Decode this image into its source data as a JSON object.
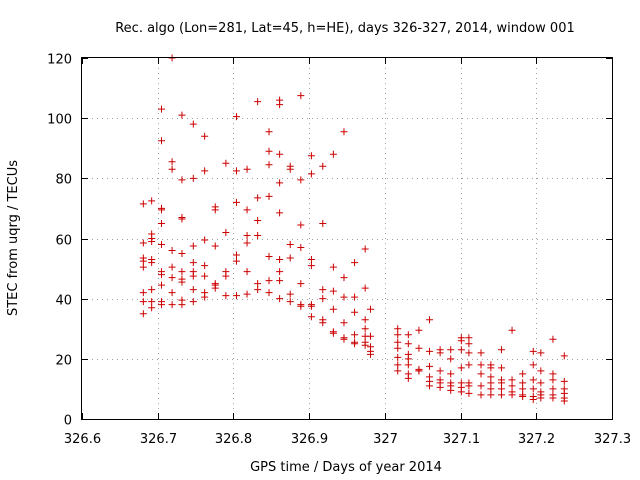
{
  "chart_data": {
    "type": "scatter",
    "title": "Rec. algo (Lon=281, Lat=45, h=HE), days 326-327, 2014, window 001",
    "xlabel": "GPS time / Days of year 2014",
    "ylabel": "STEC from uqrg / TECUs",
    "xlim": [
      326.6,
      327.3
    ],
    "ylim": [
      0,
      120
    ],
    "xticks": [
      326.6,
      326.7,
      326.8,
      326.9,
      327.0,
      327.1,
      327.2,
      327.3
    ],
    "xtick_labels": [
      "326.6",
      "326.7",
      "326.8",
      "326.9",
      "327",
      "327.1",
      "327.2",
      "327.3"
    ],
    "yticks": [
      0,
      20,
      40,
      60,
      80,
      100,
      120
    ],
    "ytick_labels": [
      "0",
      "20",
      "40",
      "60",
      "80",
      "100",
      "120"
    ],
    "grid": true,
    "marker": "+",
    "color": "#cc0000",
    "series": [
      {
        "name": "STEC",
        "points": [
          [
            326.681,
            71.5
          ],
          [
            326.681,
            58.5
          ],
          [
            326.681,
            53.5
          ],
          [
            326.681,
            52.5
          ],
          [
            326.681,
            50.5
          ],
          [
            326.681,
            42
          ],
          [
            326.681,
            39
          ],
          [
            326.681,
            35
          ],
          [
            326.692,
            72.5
          ],
          [
            326.692,
            61.5
          ],
          [
            326.692,
            60
          ],
          [
            326.692,
            59
          ],
          [
            326.692,
            53
          ],
          [
            326.692,
            52
          ],
          [
            326.692,
            43
          ],
          [
            326.692,
            39
          ],
          [
            326.692,
            37
          ],
          [
            326.705,
            103
          ],
          [
            326.705,
            92.5
          ],
          [
            326.705,
            70
          ],
          [
            326.705,
            69.5
          ],
          [
            326.705,
            65
          ],
          [
            326.705,
            58
          ],
          [
            326.705,
            49
          ],
          [
            326.705,
            48
          ],
          [
            326.705,
            44.5
          ],
          [
            326.705,
            39
          ],
          [
            326.705,
            38
          ],
          [
            326.719,
            120
          ],
          [
            326.719,
            85.5
          ],
          [
            326.719,
            83
          ],
          [
            326.719,
            56
          ],
          [
            326.719,
            50.5
          ],
          [
            326.719,
            47
          ],
          [
            326.719,
            42
          ],
          [
            326.719,
            38
          ],
          [
            326.732,
            101
          ],
          [
            326.732,
            79.5
          ],
          [
            326.732,
            67
          ],
          [
            326.732,
            66.5
          ],
          [
            326.732,
            55
          ],
          [
            326.732,
            49
          ],
          [
            326.732,
            46.5
          ],
          [
            326.732,
            45.5
          ],
          [
            326.732,
            39.5
          ],
          [
            326.732,
            38
          ],
          [
            326.747,
            98
          ],
          [
            326.747,
            80
          ],
          [
            326.747,
            57.5
          ],
          [
            326.747,
            52
          ],
          [
            326.747,
            49
          ],
          [
            326.747,
            47.5
          ],
          [
            326.747,
            43
          ],
          [
            326.747,
            39
          ],
          [
            326.762,
            94
          ],
          [
            326.762,
            82.5
          ],
          [
            326.762,
            59.5
          ],
          [
            326.762,
            51
          ],
          [
            326.762,
            47.5
          ],
          [
            326.762,
            42
          ],
          [
            326.762,
            40.5
          ],
          [
            326.776,
            70.5
          ],
          [
            326.776,
            69.5
          ],
          [
            326.776,
            57.5
          ],
          [
            326.776,
            45
          ],
          [
            326.776,
            44.5
          ],
          [
            326.776,
            43.5
          ],
          [
            326.79,
            85
          ],
          [
            326.79,
            62
          ],
          [
            326.79,
            49
          ],
          [
            326.79,
            47.5
          ],
          [
            326.79,
            41
          ],
          [
            326.804,
            100.5
          ],
          [
            326.804,
            82.5
          ],
          [
            326.804,
            72
          ],
          [
            326.804,
            54.5
          ],
          [
            326.804,
            52.5
          ],
          [
            326.804,
            41
          ],
          [
            326.818,
            83
          ],
          [
            326.818,
            69.5
          ],
          [
            326.818,
            61
          ],
          [
            326.818,
            58.5
          ],
          [
            326.818,
            49
          ],
          [
            326.818,
            41.5
          ],
          [
            326.832,
            105.5
          ],
          [
            326.832,
            73.5
          ],
          [
            326.832,
            66
          ],
          [
            326.832,
            61
          ],
          [
            326.832,
            45
          ],
          [
            326.832,
            43
          ],
          [
            326.847,
            95.5
          ],
          [
            326.847,
            89
          ],
          [
            326.847,
            84.5
          ],
          [
            326.847,
            74
          ],
          [
            326.847,
            54
          ],
          [
            326.847,
            46
          ],
          [
            326.847,
            42
          ],
          [
            326.861,
            106
          ],
          [
            326.861,
            104.5
          ],
          [
            326.861,
            88
          ],
          [
            326.861,
            78.5
          ],
          [
            326.861,
            68.5
          ],
          [
            326.861,
            53
          ],
          [
            326.861,
            49
          ],
          [
            326.861,
            46
          ],
          [
            326.861,
            40
          ],
          [
            326.875,
            84
          ],
          [
            326.875,
            83
          ],
          [
            326.875,
            58
          ],
          [
            326.875,
            53.5
          ],
          [
            326.875,
            41.5
          ],
          [
            326.875,
            39
          ],
          [
            326.889,
            107.5
          ],
          [
            326.889,
            79.5
          ],
          [
            326.889,
            64.5
          ],
          [
            326.889,
            57
          ],
          [
            326.889,
            45
          ],
          [
            326.889,
            38
          ],
          [
            326.889,
            37.5
          ],
          [
            326.903,
            87.5
          ],
          [
            326.903,
            81.5
          ],
          [
            326.903,
            53
          ],
          [
            326.903,
            51
          ],
          [
            326.903,
            38
          ],
          [
            326.903,
            37.5
          ],
          [
            326.903,
            34
          ],
          [
            326.918,
            84
          ],
          [
            326.918,
            65
          ],
          [
            326.918,
            43
          ],
          [
            326.918,
            40
          ],
          [
            326.918,
            33
          ],
          [
            326.918,
            32
          ],
          [
            326.932,
            88
          ],
          [
            326.932,
            50.5
          ],
          [
            326.932,
            42.5
          ],
          [
            326.932,
            36.5
          ],
          [
            326.932,
            29
          ],
          [
            326.932,
            28.5
          ],
          [
            326.946,
            95.5
          ],
          [
            326.946,
            47
          ],
          [
            326.946,
            40.5
          ],
          [
            326.946,
            32
          ],
          [
            326.946,
            27
          ],
          [
            326.946,
            26.5
          ],
          [
            326.96,
            52
          ],
          [
            326.96,
            40.5
          ],
          [
            326.96,
            35.5
          ],
          [
            326.96,
            28
          ],
          [
            326.96,
            25.5
          ],
          [
            326.96,
            25
          ],
          [
            326.974,
            56.5
          ],
          [
            326.974,
            43.5
          ],
          [
            326.974,
            33
          ],
          [
            326.974,
            30
          ],
          [
            326.974,
            27.5
          ],
          [
            326.974,
            25.5
          ],
          [
            326.974,
            24.5
          ],
          [
            326.981,
            36.5
          ],
          [
            326.981,
            27.5
          ],
          [
            326.981,
            24
          ],
          [
            326.981,
            22.5
          ],
          [
            326.981,
            21.5
          ],
          [
            327.017,
            30
          ],
          [
            327.017,
            28
          ],
          [
            327.017,
            25.5
          ],
          [
            327.017,
            23.5
          ],
          [
            327.017,
            20.5
          ],
          [
            327.017,
            18
          ],
          [
            327.017,
            16
          ],
          [
            327.031,
            28
          ],
          [
            327.031,
            25
          ],
          [
            327.031,
            21.5
          ],
          [
            327.031,
            20
          ],
          [
            327.031,
            18
          ],
          [
            327.031,
            15
          ],
          [
            327.031,
            13.5
          ],
          [
            327.045,
            29.5
          ],
          [
            327.045,
            23.5
          ],
          [
            327.045,
            16.5
          ],
          [
            327.045,
            16
          ],
          [
            327.045,
            16
          ],
          [
            327.059,
            33
          ],
          [
            327.059,
            22.5
          ],
          [
            327.059,
            17.5
          ],
          [
            327.059,
            14
          ],
          [
            327.059,
            12.5
          ],
          [
            327.059,
            11
          ],
          [
            327.073,
            23
          ],
          [
            327.073,
            22
          ],
          [
            327.073,
            16
          ],
          [
            327.073,
            13
          ],
          [
            327.073,
            12
          ],
          [
            327.073,
            10.5
          ],
          [
            327.087,
            23
          ],
          [
            327.087,
            20
          ],
          [
            327.087,
            15
          ],
          [
            327.087,
            12
          ],
          [
            327.087,
            11
          ],
          [
            327.087,
            9.5
          ],
          [
            327.101,
            27
          ],
          [
            327.101,
            26
          ],
          [
            327.101,
            23
          ],
          [
            327.101,
            17
          ],
          [
            327.101,
            12
          ],
          [
            327.101,
            10.5
          ],
          [
            327.101,
            9
          ],
          [
            327.111,
            27
          ],
          [
            327.111,
            25
          ],
          [
            327.111,
            22
          ],
          [
            327.111,
            18
          ],
          [
            327.111,
            12
          ],
          [
            327.111,
            11
          ],
          [
            327.111,
            8.5
          ],
          [
            327.127,
            22
          ],
          [
            327.127,
            18
          ],
          [
            327.127,
            15
          ],
          [
            327.127,
            11
          ],
          [
            327.127,
            8
          ],
          [
            327.14,
            18
          ],
          [
            327.14,
            17
          ],
          [
            327.14,
            14
          ],
          [
            327.14,
            12
          ],
          [
            327.14,
            10
          ],
          [
            327.14,
            8
          ],
          [
            327.154,
            23
          ],
          [
            327.154,
            17
          ],
          [
            327.154,
            13
          ],
          [
            327.154,
            12
          ],
          [
            327.154,
            10
          ],
          [
            327.154,
            8
          ],
          [
            327.168,
            29.5
          ],
          [
            327.168,
            13
          ],
          [
            327.168,
            11
          ],
          [
            327.168,
            9
          ],
          [
            327.168,
            8
          ],
          [
            327.182,
            15
          ],
          [
            327.182,
            12
          ],
          [
            327.182,
            10
          ],
          [
            327.182,
            8
          ],
          [
            327.182,
            7.5
          ],
          [
            327.196,
            22.5
          ],
          [
            327.196,
            18
          ],
          [
            327.196,
            13
          ],
          [
            327.196,
            10
          ],
          [
            327.196,
            7.5
          ],
          [
            327.196,
            6.5
          ],
          [
            327.206,
            22
          ],
          [
            327.206,
            16
          ],
          [
            327.206,
            12
          ],
          [
            327.206,
            9
          ],
          [
            327.206,
            8
          ],
          [
            327.206,
            7
          ],
          [
            327.222,
            26.5
          ],
          [
            327.222,
            15
          ],
          [
            327.222,
            13
          ],
          [
            327.222,
            10
          ],
          [
            327.222,
            8
          ],
          [
            327.222,
            7
          ],
          [
            327.237,
            21
          ],
          [
            327.237,
            12.5
          ],
          [
            327.237,
            10
          ],
          [
            327.237,
            8.5
          ],
          [
            327.237,
            7
          ],
          [
            327.237,
            6
          ]
        ]
      }
    ]
  }
}
